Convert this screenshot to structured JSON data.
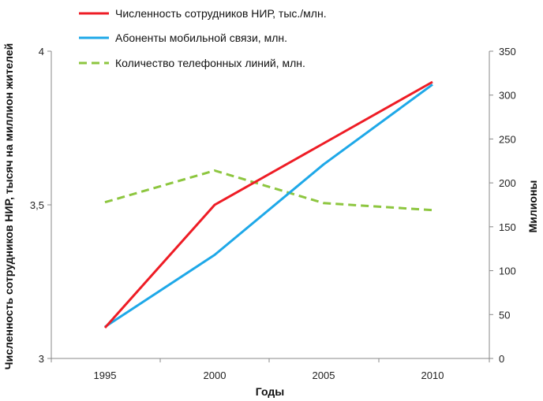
{
  "chart_data": {
    "type": "line",
    "title": "",
    "x": [
      1995,
      2000,
      2005,
      2010
    ],
    "x_tick_labels": [
      "1995",
      "2000",
      "2005",
      "2010"
    ],
    "xlabel": "Годы",
    "ylabel_left": "Численность сотрудников НИР, тысяч на миллион жителей",
    "ylabel_right": "Милионы",
    "ylim_left": [
      3,
      4
    ],
    "ylim_right": [
      0,
      350
    ],
    "y_ticks_left": [
      "3",
      "3,5",
      "4"
    ],
    "y_ticks_right": [
      "0",
      "50",
      "100",
      "150",
      "200",
      "250",
      "300",
      "350"
    ],
    "grid": false,
    "legend_position": "top-left",
    "series": [
      {
        "name": "Численность сотрудников НИР, тыс./млн.",
        "axis": "left",
        "color": "#ee1c25",
        "dash": "solid",
        "values": [
          3.1,
          3.5,
          3.7,
          3.9
        ]
      },
      {
        "name": "Абоненты мобильной связи, млн.",
        "axis": "right",
        "color": "#1ea8e8",
        "dash": "solid",
        "values": [
          36,
          118,
          221,
          312
        ]
      },
      {
        "name": "Количество телефонных линий, млн.",
        "axis": "right",
        "color": "#8dc63f",
        "dash": "dashed",
        "values": [
          178,
          214,
          177,
          169
        ]
      }
    ]
  }
}
